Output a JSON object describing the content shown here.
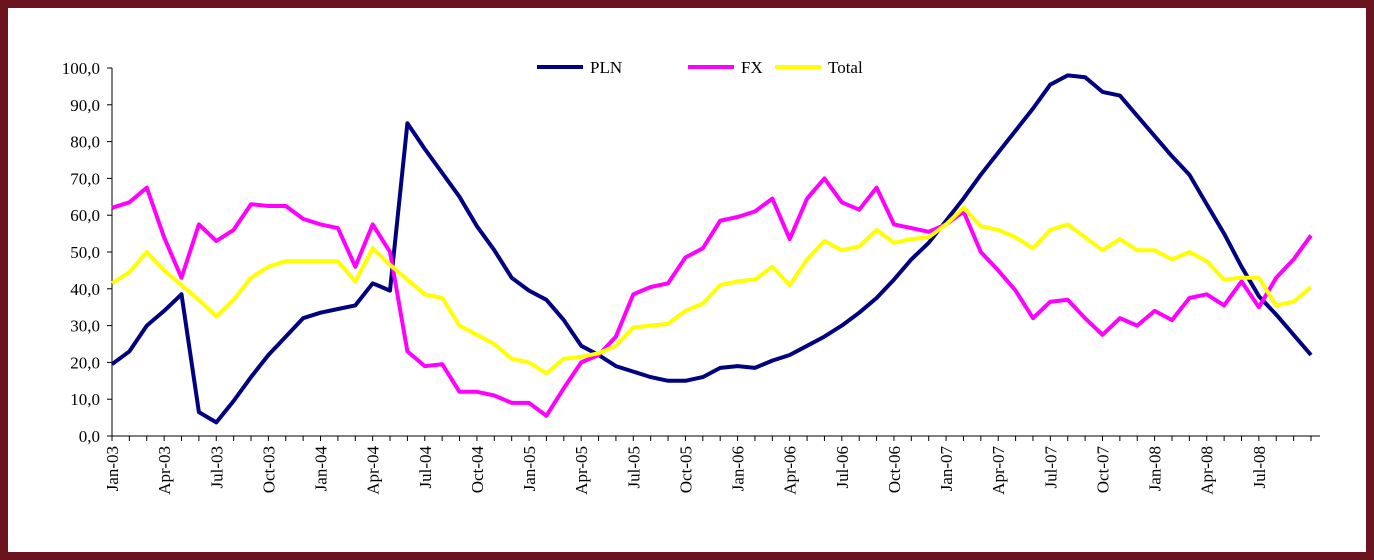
{
  "chart_data": {
    "type": "line",
    "categories": [
      "Jan-03",
      null,
      null,
      "Apr-03",
      null,
      null,
      "Jul-03",
      null,
      null,
      "Oct-03",
      null,
      null,
      "Jan-04",
      null,
      null,
      "Apr-04",
      null,
      null,
      "Jul-04",
      null,
      null,
      "Oct-04",
      null,
      null,
      "Jan-05",
      null,
      null,
      "Apr-05",
      null,
      null,
      "Jul-05",
      null,
      null,
      "Oct-05",
      null,
      null,
      "Jan-06",
      null,
      null,
      "Apr-06",
      null,
      null,
      "Jul-06",
      null,
      null,
      "Oct-06",
      null,
      null,
      "Jan-07",
      null,
      null,
      "Apr-07",
      null,
      null,
      "Jul-07",
      null,
      null,
      "Oct-07",
      null,
      null,
      "Jan-08",
      null,
      null,
      "Apr-08",
      null,
      null,
      "Jul-08",
      null,
      null,
      null
    ],
    "series": [
      {
        "name": "PLN",
        "color": "#000080",
        "values": [
          19.5,
          23,
          30,
          34,
          38.5,
          6.5,
          3.7,
          9.5,
          16,
          22,
          27,
          32,
          33.5,
          34.5,
          35.5,
          41.5,
          39.5,
          85,
          78,
          71.5,
          65,
          57,
          50.5,
          43,
          39.5,
          37,
          31.5,
          24.5,
          22,
          19,
          17.5,
          16,
          15,
          15,
          16,
          18.5,
          19,
          18.5,
          20.5,
          22,
          24.5,
          27,
          30,
          33.5,
          37.5,
          42.5,
          48,
          52.5,
          58.5,
          64.5,
          71,
          77,
          83,
          89,
          95.5,
          98,
          97.5,
          93.5,
          92.5,
          87,
          81.5,
          76,
          71,
          63,
          55,
          46,
          38,
          33,
          27.5,
          22
        ]
      },
      {
        "name": "FX",
        "color": "#ff00ff",
        "values": [
          62,
          63.5,
          67.5,
          54,
          43,
          57.5,
          53,
          56,
          63,
          62.5,
          62.5,
          59,
          57.5,
          56.5,
          46,
          57.5,
          50,
          23,
          19,
          19.5,
          12,
          12,
          11,
          9,
          9,
          5.5,
          13,
          20,
          22,
          27,
          38.5,
          40.5,
          41.5,
          48.5,
          51,
          58.5,
          59.5,
          61,
          64.5,
          53.5,
          64.5,
          70,
          63.5,
          61.5,
          67.5,
          57.5,
          56.5,
          55.5,
          57.5,
          61,
          50,
          45,
          39.5,
          32,
          36.5,
          37,
          32,
          27.5,
          32,
          30,
          34,
          31.5,
          37.5,
          38.5,
          35.5,
          42,
          35,
          43,
          48,
          54.5
        ]
      },
      {
        "name": "Total",
        "color": "#ffff00",
        "values": [
          41.5,
          44.5,
          50,
          45,
          41,
          37,
          32.5,
          37,
          43,
          46,
          47.5,
          47.5,
          47.5,
          47.5,
          42,
          51,
          46.5,
          42.5,
          38.5,
          37.5,
          30,
          27.5,
          25,
          21,
          20,
          17,
          21,
          21.5,
          22.5,
          24.5,
          29.5,
          30,
          30.5,
          34,
          36,
          41,
          42,
          42.5,
          46,
          41,
          48,
          53,
          50.5,
          51.5,
          56,
          52.5,
          53.5,
          54,
          57.5,
          62,
          57,
          56,
          54,
          51,
          56,
          57.5,
          54,
          50.5,
          53.5,
          50.5,
          50.5,
          48,
          50,
          47.5,
          42.5,
          43,
          43,
          35.5,
          36.5,
          40.5
        ]
      }
    ],
    "ylim": [
      0,
      100
    ],
    "yticks": [
      {
        "value": 0,
        "label": "0,0"
      },
      {
        "value": 10,
        "label": "10,0"
      },
      {
        "value": 20,
        "label": "20,0"
      },
      {
        "value": 30,
        "label": "30,0"
      },
      {
        "value": 40,
        "label": "40,0"
      },
      {
        "value": 50,
        "label": "50,0"
      },
      {
        "value": 60,
        "label": "60,0"
      },
      {
        "value": 70,
        "label": "70,0"
      },
      {
        "value": 80,
        "label": "80,0"
      },
      {
        "value": 90,
        "label": "90,0"
      },
      {
        "value": 100,
        "label": "100,0"
      }
    ],
    "legend": "top"
  }
}
